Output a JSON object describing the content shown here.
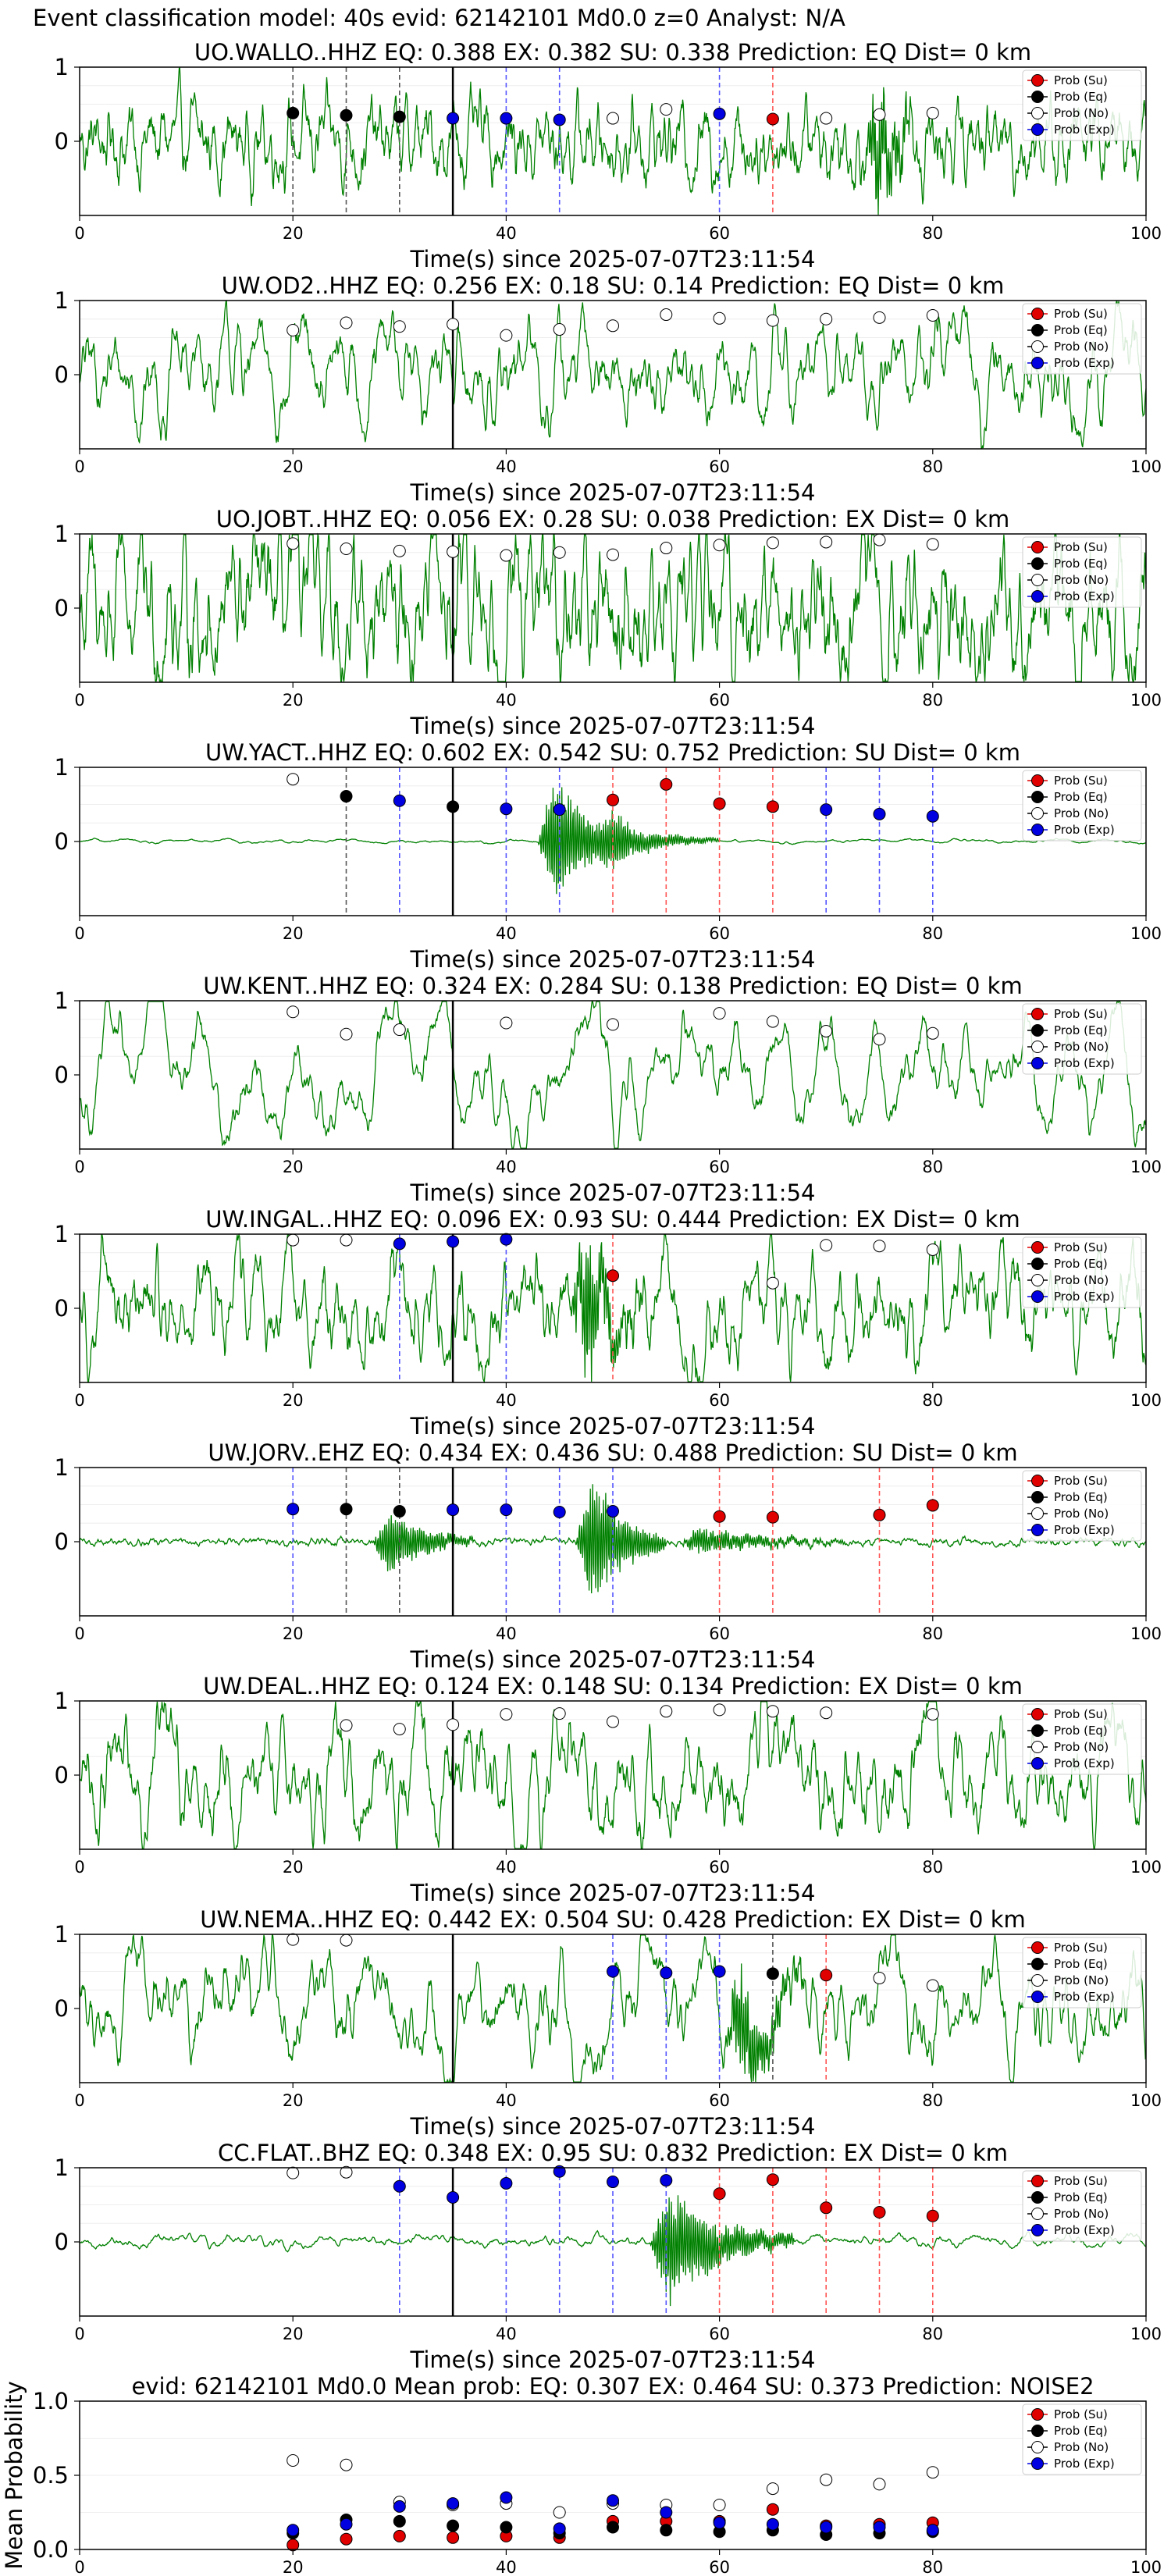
{
  "suptitle": "Event classification model: 40s evid: 62142101 Md0.0 z=0 Analyst: N/A",
  "common": {
    "xlabel": "Time(s) since 2025-07-07T23:11:54",
    "xlim": [
      0,
      100
    ],
    "xticks": [
      0,
      20,
      40,
      60,
      80,
      100
    ],
    "waveform_ylim": [
      -1,
      1
    ],
    "waveform_yticks": [
      0,
      1
    ],
    "arrival_time": 35,
    "legend": [
      "Prob (Su)",
      "Prob (Eq)",
      "Prob (No)",
      "Prob (Exp)"
    ],
    "legend_location": "top-right",
    "colors": {
      "su": "#e00000",
      "eq": "#000000",
      "no": "#ffffff",
      "exp": "#0000e0",
      "trace": "#008000",
      "tick_su": "#ff5555",
      "tick_eq": "#555555",
      "tick_exp": "#5555ff"
    }
  },
  "chart_data": [
    {
      "type": "line",
      "title": "UO.WALLO..HHZ   EQ: 0.388  EX: 0.382  SU: 0.338   Prediction: EQ    Dist= 0 km",
      "waveform": {
        "style": "noise",
        "amplitude": 0.25,
        "smooth": 0.7,
        "events": [
          {
            "t": 75,
            "amp": 0.85,
            "dur": 4
          }
        ]
      },
      "points": [
        [
          20,
          "eq",
          0.38
        ],
        [
          25,
          "eq",
          0.35
        ],
        [
          30,
          "eq",
          0.33
        ],
        [
          35,
          "exp",
          0.31
        ],
        [
          40,
          "exp",
          0.31
        ],
        [
          45,
          "exp",
          0.29
        ],
        [
          50,
          "no",
          0.31
        ],
        [
          55,
          "no",
          0.43
        ],
        [
          60,
          "exp",
          0.37
        ],
        [
          65,
          "su",
          0.3
        ],
        [
          70,
          "no",
          0.31
        ],
        [
          75,
          "no",
          0.36
        ],
        [
          80,
          "no",
          0.38
        ]
      ]
    },
    {
      "type": "line",
      "title": "UW.OD2..HHZ   EQ: 0.256  EX: 0.18  SU: 0.14   Prediction: EQ    Dist= 0 km",
      "waveform": {
        "style": "noise",
        "amplitude": 0.55,
        "smooth": 0.9,
        "events": []
      },
      "points": [
        [
          20,
          "no",
          0.6
        ],
        [
          25,
          "no",
          0.7
        ],
        [
          30,
          "no",
          0.65
        ],
        [
          35,
          "no",
          0.68
        ],
        [
          40,
          "no",
          0.53
        ],
        [
          45,
          "no",
          0.61
        ],
        [
          50,
          "no",
          0.66
        ],
        [
          55,
          "no",
          0.81
        ],
        [
          60,
          "no",
          0.76
        ],
        [
          65,
          "no",
          0.73
        ],
        [
          70,
          "no",
          0.75
        ],
        [
          75,
          "no",
          0.77
        ],
        [
          80,
          "no",
          0.8
        ]
      ]
    },
    {
      "type": "line",
      "title": "UO.JOBT..HHZ   EQ: 0.056  EX: 0.28  SU: 0.038   Prediction: EX    Dist= 0 km",
      "waveform": {
        "style": "noise",
        "amplitude": 0.5,
        "smooth": 0.75,
        "events": []
      },
      "points": [
        [
          20,
          "no",
          0.87
        ],
        [
          25,
          "no",
          0.8
        ],
        [
          30,
          "no",
          0.77
        ],
        [
          35,
          "no",
          0.76
        ],
        [
          40,
          "no",
          0.71
        ],
        [
          45,
          "no",
          0.75
        ],
        [
          50,
          "no",
          0.72
        ],
        [
          55,
          "no",
          0.81
        ],
        [
          60,
          "no",
          0.85
        ],
        [
          65,
          "no",
          0.88
        ],
        [
          70,
          "no",
          0.89
        ],
        [
          75,
          "no",
          0.92
        ],
        [
          80,
          "no",
          0.86
        ]
      ]
    },
    {
      "type": "line",
      "title": "UW.YACT..HHZ   EQ: 0.602  EX: 0.542  SU: 0.752   Prediction: SU    Dist= 0 km",
      "waveform": {
        "style": "quiet",
        "amplitude": 0.03,
        "smooth": 0.95,
        "events": [
          {
            "t": 44.5,
            "amp": 1.0,
            "dur": 7
          },
          {
            "t": 50,
            "amp": 0.3,
            "dur": 10
          }
        ]
      },
      "points": [
        [
          20,
          "no",
          0.84
        ],
        [
          25,
          "eq",
          0.61
        ],
        [
          30,
          "exp",
          0.55
        ],
        [
          35,
          "eq",
          0.47
        ],
        [
          40,
          "exp",
          0.44
        ],
        [
          45,
          "exp",
          0.43
        ],
        [
          50,
          "su",
          0.56
        ],
        [
          55,
          "su",
          0.77
        ],
        [
          60,
          "su",
          0.51
        ],
        [
          65,
          "su",
          0.47
        ],
        [
          70,
          "exp",
          0.43
        ],
        [
          75,
          "exp",
          0.37
        ],
        [
          80,
          "exp",
          0.34
        ]
      ]
    },
    {
      "type": "line",
      "title": "UW.KENT..HHZ   EQ: 0.324  EX: 0.284  SU: 0.138   Prediction: EQ    Dist= 0 km",
      "waveform": {
        "style": "wave",
        "amplitude": 0.7,
        "smooth": 0.97,
        "events": []
      },
      "points": [
        [
          20,
          "no",
          0.85
        ],
        [
          25,
          "no",
          0.55
        ],
        [
          30,
          "no",
          0.61
        ],
        [
          40,
          "no",
          0.7
        ],
        [
          50,
          "no",
          0.68
        ],
        [
          60,
          "no",
          0.83
        ],
        [
          65,
          "no",
          0.72
        ],
        [
          70,
          "no",
          0.59
        ],
        [
          75,
          "no",
          0.48
        ],
        [
          80,
          "no",
          0.56
        ]
      ]
    },
    {
      "type": "line",
      "title": "UW.INGAL..HHZ   EQ: 0.096  EX: 0.93  SU: 0.444   Prediction: EX    Dist= 0 km",
      "waveform": {
        "style": "noise",
        "amplitude": 0.45,
        "smooth": 0.85,
        "events": [
          {
            "t": 47.5,
            "amp": 1.0,
            "dur": 5
          }
        ]
      },
      "points": [
        [
          20,
          "no",
          0.92
        ],
        [
          25,
          "no",
          0.92
        ],
        [
          30,
          "exp",
          0.87
        ],
        [
          35,
          "exp",
          0.9
        ],
        [
          40,
          "exp",
          0.93
        ],
        [
          50,
          "su",
          0.44
        ],
        [
          65,
          "no",
          0.34
        ],
        [
          70,
          "no",
          0.85
        ],
        [
          75,
          "no",
          0.84
        ],
        [
          80,
          "no",
          0.79
        ]
      ]
    },
    {
      "type": "line",
      "title": "UW.JORV..EHZ   EQ: 0.434  EX: 0.436  SU: 0.488   Prediction: SU    Dist= 0 km",
      "waveform": {
        "style": "quiet",
        "amplitude": 0.02,
        "smooth": 0.6,
        "events": [
          {
            "t": 29,
            "amp": 0.5,
            "dur": 8
          },
          {
            "t": 48,
            "amp": 1.0,
            "dur": 7
          },
          {
            "t": 58,
            "amp": 0.2,
            "dur": 14
          }
        ]
      },
      "points": [
        [
          20,
          "exp",
          0.44
        ],
        [
          25,
          "eq",
          0.44
        ],
        [
          30,
          "eq",
          0.41
        ],
        [
          35,
          "exp",
          0.43
        ],
        [
          40,
          "exp",
          0.43
        ],
        [
          45,
          "exp",
          0.4
        ],
        [
          50,
          "exp",
          0.41
        ],
        [
          60,
          "su",
          0.34
        ],
        [
          65,
          "su",
          0.33
        ],
        [
          75,
          "su",
          0.36
        ],
        [
          80,
          "su",
          0.49
        ]
      ]
    },
    {
      "type": "line",
      "title": "UW.DEAL..HHZ   EQ: 0.124  EX: 0.148  SU: 0.134   Prediction: EX    Dist= 0 km",
      "waveform": {
        "style": "noise",
        "amplitude": 0.55,
        "smooth": 0.88,
        "events": []
      },
      "points": [
        [
          25,
          "no",
          0.67
        ],
        [
          30,
          "no",
          0.62
        ],
        [
          35,
          "no",
          0.68
        ],
        [
          40,
          "no",
          0.82
        ],
        [
          45,
          "no",
          0.83
        ],
        [
          50,
          "no",
          0.72
        ],
        [
          55,
          "no",
          0.86
        ],
        [
          60,
          "no",
          0.88
        ],
        [
          65,
          "no",
          0.86
        ],
        [
          70,
          "no",
          0.84
        ],
        [
          80,
          "no",
          0.82
        ]
      ]
    },
    {
      "type": "line",
      "title": "UW.NEMA..HHZ   EQ: 0.442  EX: 0.504  SU: 0.428   Prediction: EX    Dist= 0 km",
      "waveform": {
        "style": "wave",
        "amplitude": 0.45,
        "smooth": 0.93,
        "events": [
          {
            "t": 62,
            "amp": 0.8,
            "dur": 6
          }
        ]
      },
      "points": [
        [
          20,
          "no",
          0.93
        ],
        [
          25,
          "no",
          0.92
        ],
        [
          50,
          "exp",
          0.5
        ],
        [
          55,
          "exp",
          0.48
        ],
        [
          60,
          "exp",
          0.5
        ],
        [
          65,
          "eq",
          0.47
        ],
        [
          70,
          "su",
          0.45
        ],
        [
          75,
          "no",
          0.41
        ],
        [
          80,
          "no",
          0.31
        ]
      ]
    },
    {
      "type": "line",
      "title": "CC.FLAT..BHZ   EQ: 0.348  EX: 0.95  SU: 0.832   Prediction: EX    Dist= 0 km",
      "waveform": {
        "style": "quiet",
        "amplitude": 0.06,
        "smooth": 0.9,
        "events": [
          {
            "t": 55,
            "amp": 0.85,
            "dur": 12
          }
        ]
      },
      "points": [
        [
          20,
          "no",
          0.93
        ],
        [
          25,
          "no",
          0.94
        ],
        [
          30,
          "exp",
          0.75
        ],
        [
          35,
          "exp",
          0.6
        ],
        [
          40,
          "exp",
          0.79
        ],
        [
          45,
          "exp",
          0.95
        ],
        [
          50,
          "exp",
          0.81
        ],
        [
          55,
          "exp",
          0.83
        ],
        [
          60,
          "su",
          0.65
        ],
        [
          65,
          "su",
          0.84
        ],
        [
          70,
          "su",
          0.46
        ],
        [
          75,
          "su",
          0.4
        ],
        [
          80,
          "su",
          0.35
        ]
      ]
    },
    {
      "type": "scatter",
      "title": "evid: 62142101   Md0.0   Mean prob:   EQ: 0.307  EX: 0.464  SU: 0.373   Prediction: NOISE2",
      "ylabel": "Mean Probability",
      "ylim": [
        0,
        1
      ],
      "yticks": [
        0.0,
        0.5,
        1.0
      ],
      "series": [
        {
          "name": "Prob (Su)",
          "key": "su",
          "x": [
            20,
            25,
            30,
            35,
            40,
            45,
            50,
            55,
            60,
            65,
            70,
            75,
            80
          ],
          "y": [
            0.03,
            0.07,
            0.09,
            0.08,
            0.09,
            0.08,
            0.19,
            0.19,
            0.19,
            0.27,
            0.16,
            0.17,
            0.18
          ]
        },
        {
          "name": "Prob (Eq)",
          "key": "eq",
          "x": [
            20,
            25,
            30,
            35,
            40,
            45,
            50,
            55,
            60,
            65,
            70,
            75,
            80
          ],
          "y": [
            0.11,
            0.2,
            0.19,
            0.16,
            0.15,
            0.11,
            0.15,
            0.13,
            0.12,
            0.13,
            0.1,
            0.11,
            0.12
          ]
        },
        {
          "name": "Prob (No)",
          "key": "no",
          "x": [
            20,
            25,
            30,
            35,
            40,
            45,
            50,
            55,
            60,
            65,
            70,
            75,
            80
          ],
          "y": [
            0.6,
            0.57,
            0.32,
            0.3,
            0.31,
            0.25,
            0.31,
            0.3,
            0.3,
            0.41,
            0.47,
            0.44,
            0.52
          ]
        },
        {
          "name": "Prob (Exp)",
          "key": "exp",
          "x": [
            20,
            25,
            30,
            35,
            40,
            45,
            50,
            55,
            60,
            65,
            70,
            75,
            80
          ],
          "y": [
            0.13,
            0.17,
            0.29,
            0.31,
            0.35,
            0.14,
            0.33,
            0.25,
            0.18,
            0.17,
            0.15,
            0.15,
            0.13
          ]
        }
      ]
    }
  ]
}
